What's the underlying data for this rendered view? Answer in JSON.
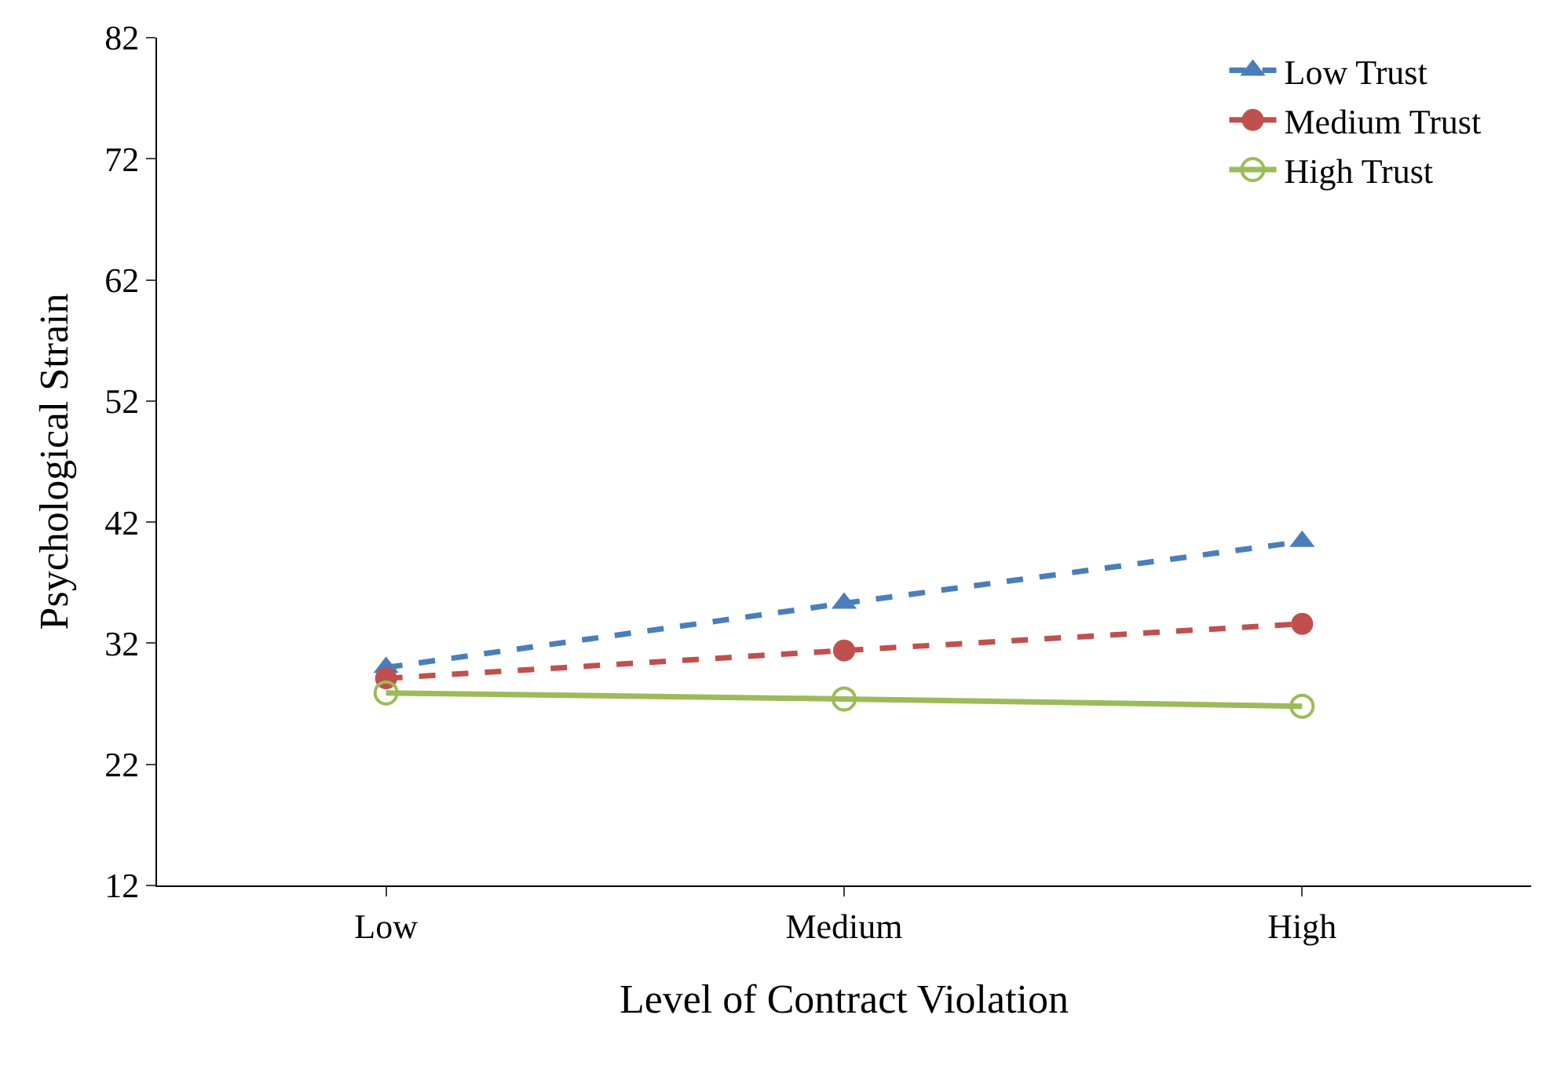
{
  "chart_data": {
    "type": "line",
    "xlabel": "Level of Contract Violation",
    "ylabel": "Psychological Strain",
    "categories": [
      "Low",
      "Medium",
      "High"
    ],
    "series": [
      {
        "name": "Low Trust",
        "color": "#4a7ebb",
        "values": [
          30.0,
          35.3,
          40.4
        ],
        "marker": "triangle",
        "line_style": "dashed"
      },
      {
        "name": "Medium Trust",
        "color": "#c0504d",
        "values": [
          29.1,
          31.4,
          33.6
        ],
        "marker": "circle",
        "line_style": "dashed"
      },
      {
        "name": "High Trust",
        "color": "#9bbb59",
        "values": [
          27.9,
          27.4,
          26.8
        ],
        "marker": "circle-open",
        "line_style": "solid"
      }
    ],
    "ylim": [
      12,
      82
    ],
    "yticks": [
      12,
      22,
      32,
      42,
      52,
      62,
      72,
      82
    ],
    "legend": "top right"
  }
}
